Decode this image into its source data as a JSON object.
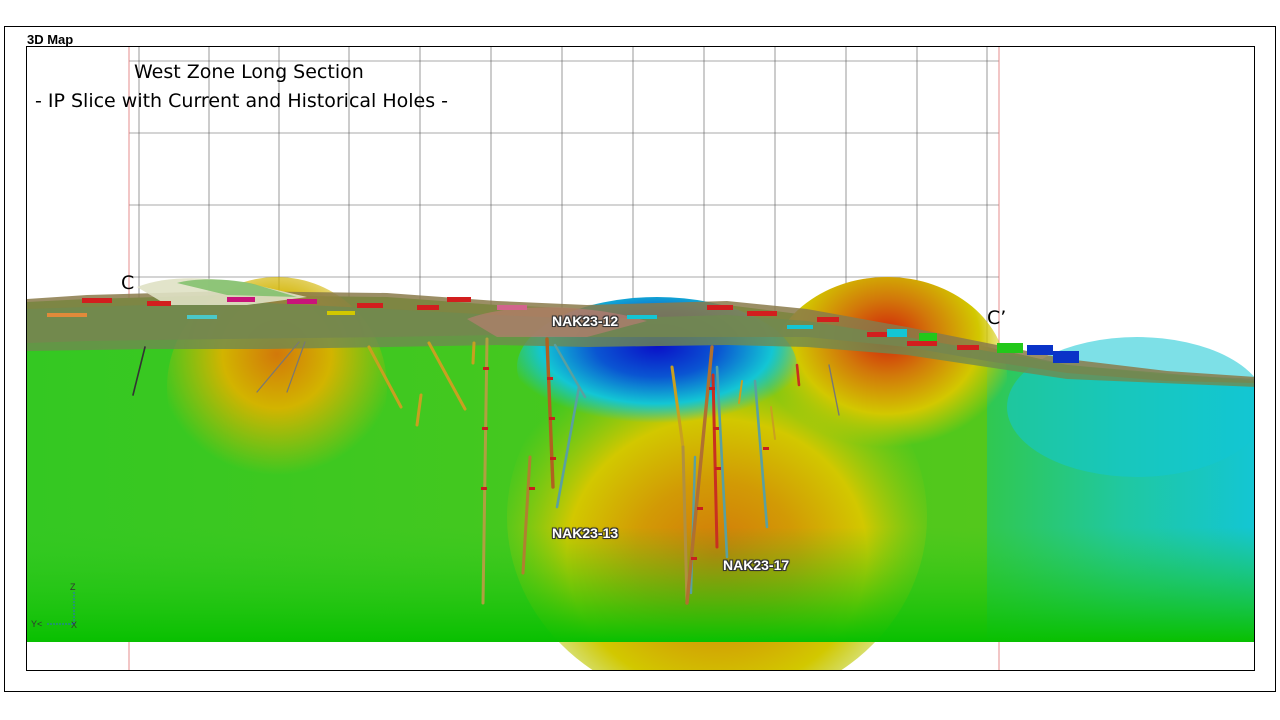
{
  "panel": {
    "title": "3D Map"
  },
  "figure": {
    "title_line_1": "West Zone Long Section",
    "title_line_2": "- IP Slice with Current and Historical Holes -"
  },
  "section_markers": {
    "start": "C",
    "end": "C’"
  },
  "drill_hole_labels": [
    "NAK23-12",
    "NAK23-13",
    "NAK23-17"
  ],
  "axis_triad": {
    "z": "Z",
    "y": "Y<",
    "x": "X"
  },
  "colors": {
    "low_chargeability": "#0a33c8",
    "mid_low": "#13c6d4",
    "mid": "#22c81a",
    "mid_high": "#d2c800",
    "high": "#d2780a",
    "peak": "#d21e0a",
    "grid_line": "#555555",
    "section_line": "#e07070"
  }
}
